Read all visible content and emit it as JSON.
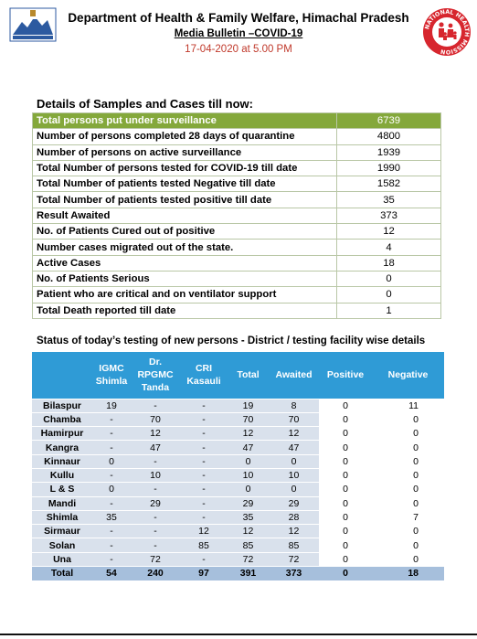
{
  "header": {
    "title": "Department of Health & Family Welfare, Himachal Pradesh",
    "subtitle": "Media Bulletin –COVID-19",
    "date": "17-04-2020 at 5.00 PM"
  },
  "logos": {
    "right_text": "NATIONAL HEALTH MISSION",
    "left_icon": "himachal-emblem-icon",
    "right_icon": "nhm-family-icon",
    "colors": {
      "right_ring": "#d7262e",
      "left_blue": "#2c5aa0"
    }
  },
  "summary": {
    "title": "Details of Samples and Cases till now:",
    "highlight_color": "#84a83b",
    "rows": [
      {
        "label": "Total persons put under surveillance",
        "value": "6739"
      },
      {
        "label": "Number of persons completed 28 days of quarantine",
        "value": "4800"
      },
      {
        "label": "Number of persons on active surveillance",
        "value": "1939"
      },
      {
        "label": "Total Number of persons tested for COVID-19 till date",
        "value": "1990"
      },
      {
        "label": "Total Number of patients tested Negative till date",
        "value": "1582"
      },
      {
        "label": "Total Number of patients tested positive till date",
        "value": "35"
      },
      {
        "label": "Result Awaited",
        "value": "373"
      },
      {
        "label": "No. of Patients Cured out of positive",
        "value": "12"
      },
      {
        "label": "Number cases migrated out of the state.",
        "value": "4"
      },
      {
        "label": "Active Cases",
        "value": "18"
      },
      {
        "label": "No. of Patients  Serious",
        "value": "0"
      },
      {
        "label": "Patient who are critical and on ventilator support",
        "value": "0"
      },
      {
        "label": "Total Death reported till date",
        "value": "1"
      }
    ]
  },
  "district": {
    "title": "Status of today’s testing of new persons - District / testing facility wise details",
    "header_color": "#2f9bd6",
    "columns": {
      "igmc_1": "IGMC",
      "igmc_2": "Shimla",
      "rpgmc_1": "Dr.",
      "rpgmc_2": "RPGMC",
      "rpgmc_3": "Tanda",
      "cri_1": "CRI",
      "cri_2": "Kasauli",
      "total": "Total",
      "awaited": "Awaited",
      "positive": "Positive",
      "negative": "Negative"
    },
    "rows": [
      {
        "name": "Bilaspur",
        "igmc": "19",
        "rpgmc": "-",
        "cri": "-",
        "total": "19",
        "awaited": "8",
        "positive": "0",
        "negative": "11"
      },
      {
        "name": "Chamba",
        "igmc": "-",
        "rpgmc": "70",
        "cri": "-",
        "total": "70",
        "awaited": "70",
        "positive": "0",
        "negative": "0"
      },
      {
        "name": "Hamirpur",
        "igmc": "-",
        "rpgmc": "12",
        "cri": "-",
        "total": "12",
        "awaited": "12",
        "positive": "0",
        "negative": "0"
      },
      {
        "name": "Kangra",
        "igmc": "-",
        "rpgmc": "47",
        "cri": "-",
        "total": "47",
        "awaited": "47",
        "positive": "0",
        "negative": "0"
      },
      {
        "name": "Kinnaur",
        "igmc": "0",
        "rpgmc": "-",
        "cri": "-",
        "total": "0",
        "awaited": "0",
        "positive": "0",
        "negative": "0"
      },
      {
        "name": "Kullu",
        "igmc": "-",
        "rpgmc": "10",
        "cri": "-",
        "total": "10",
        "awaited": "10",
        "positive": "0",
        "negative": "0"
      },
      {
        "name": "L & S",
        "igmc": "0",
        "rpgmc": "-",
        "cri": "-",
        "total": "0",
        "awaited": "0",
        "positive": "0",
        "negative": "0"
      },
      {
        "name": "Mandi",
        "igmc": "-",
        "rpgmc": "29",
        "cri": "-",
        "total": "29",
        "awaited": "29",
        "positive": "0",
        "negative": "0"
      },
      {
        "name": "Shimla",
        "igmc": "35",
        "rpgmc": "-",
        "cri": "-",
        "total": "35",
        "awaited": "28",
        "positive": "0",
        "negative": "7"
      },
      {
        "name": "Sirmaur",
        "igmc": "-",
        "rpgmc": "-",
        "cri": "12",
        "total": "12",
        "awaited": "12",
        "positive": "0",
        "negative": "0"
      },
      {
        "name": "Solan",
        "igmc": "-",
        "rpgmc": "-",
        "cri": "85",
        "total": "85",
        "awaited": "85",
        "positive": "0",
        "negative": "0"
      },
      {
        "name": "Una",
        "igmc": "-",
        "rpgmc": "72",
        "cri": "-",
        "total": "72",
        "awaited": "72",
        "positive": "0",
        "negative": "0"
      }
    ],
    "total": {
      "name": "Total",
      "igmc": "54",
      "rpgmc": "240",
      "cri": "97",
      "total": "391",
      "awaited": "373",
      "positive": "0",
      "negative": "18"
    }
  }
}
